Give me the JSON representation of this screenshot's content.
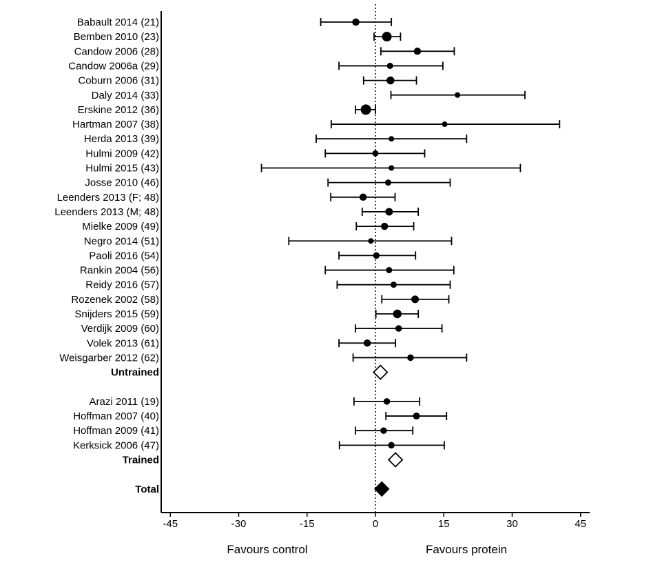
{
  "chart_data": {
    "type": "forest",
    "x_ticks": [
      -45,
      -30,
      -15,
      0,
      15,
      30,
      45
    ],
    "xlim": [
      -47,
      47
    ],
    "reference_line": 0,
    "x_caption_left": "Favours control",
    "x_caption_right": "Favours protein",
    "rows": [
      {
        "kind": "study",
        "label": "Babault 2014 (21)",
        "est": -4.3,
        "lo": -12.0,
        "hi": 3.5,
        "weight": 0.55
      },
      {
        "kind": "study",
        "label": "Bemben 2010 (23)",
        "est": 2.5,
        "lo": -0.3,
        "hi": 5.5,
        "weight": 0.9
      },
      {
        "kind": "study",
        "label": "Candow 2006 (28)",
        "est": 9.2,
        "lo": 1.2,
        "hi": 17.3,
        "weight": 0.55
      },
      {
        "kind": "study",
        "label": "Candow 2006a (29)",
        "est": 3.2,
        "lo": -8.0,
        "hi": 14.8,
        "weight": 0.4
      },
      {
        "kind": "study",
        "label": "Coburn 2006 (31)",
        "est": 3.3,
        "lo": -2.6,
        "hi": 9.0,
        "weight": 0.65
      },
      {
        "kind": "study",
        "label": "Daly 2014 (33)",
        "est": 18.0,
        "lo": 3.4,
        "hi": 32.8,
        "weight": 0.3
      },
      {
        "kind": "study",
        "label": "Erskine 2012 (36)",
        "est": -2.1,
        "lo": -4.4,
        "hi": 0.0,
        "weight": 1.0
      },
      {
        "kind": "study",
        "label": "Hartman 2007 (38)",
        "est": 15.2,
        "lo": -9.7,
        "hi": 40.4,
        "weight": 0.3
      },
      {
        "kind": "study",
        "label": "Herda 2013 (39)",
        "est": 3.5,
        "lo": -13.0,
        "hi": 20.0,
        "weight": 0.3
      },
      {
        "kind": "study",
        "label": "Hulmi 2009 (42)",
        "est": 0.0,
        "lo": -11.0,
        "hi": 10.8,
        "weight": 0.4
      },
      {
        "kind": "study",
        "label": "Hulmi 2015 (43)",
        "est": 3.5,
        "lo": -25.0,
        "hi": 31.8,
        "weight": 0.3
      },
      {
        "kind": "study",
        "label": "Josse 2010 (46)",
        "est": 2.8,
        "lo": -10.4,
        "hi": 16.4,
        "weight": 0.4
      },
      {
        "kind": "study",
        "label": "Leenders 2013 (F; 48)",
        "est": -2.7,
        "lo": -9.8,
        "hi": 4.3,
        "weight": 0.55
      },
      {
        "kind": "study",
        "label": "Leenders 2013 (M; 48)",
        "est": 3.0,
        "lo": -2.9,
        "hi": 9.4,
        "weight": 0.6
      },
      {
        "kind": "study",
        "label": "Mielke 2009 (49)",
        "est": 2.0,
        "lo": -4.2,
        "hi": 8.4,
        "weight": 0.55
      },
      {
        "kind": "study",
        "label": "Negro 2014 (51)",
        "est": -1.0,
        "lo": -19.0,
        "hi": 16.7,
        "weight": 0.3
      },
      {
        "kind": "study",
        "label": "Paoli 2016 (54)",
        "est": 0.2,
        "lo": -8.0,
        "hi": 8.8,
        "weight": 0.45
      },
      {
        "kind": "study",
        "label": "Rankin 2004 (56)",
        "est": 3.0,
        "lo": -11.0,
        "hi": 17.2,
        "weight": 0.4
      },
      {
        "kind": "study",
        "label": "Reidy 2016 (57)",
        "est": 4.0,
        "lo": -8.4,
        "hi": 16.4,
        "weight": 0.4
      },
      {
        "kind": "study",
        "label": "Rozenek 2002 (58)",
        "est": 8.7,
        "lo": 1.4,
        "hi": 16.1,
        "weight": 0.6
      },
      {
        "kind": "study",
        "label": "Snijders 2015 (59)",
        "est": 4.8,
        "lo": 0.1,
        "hi": 9.4,
        "weight": 0.75
      },
      {
        "kind": "study",
        "label": "Verdijk 2009 (60)",
        "est": 5.1,
        "lo": -4.4,
        "hi": 14.6,
        "weight": 0.45
      },
      {
        "kind": "study",
        "label": "Volek 2013 (61)",
        "est": -1.8,
        "lo": -8.0,
        "hi": 4.4,
        "weight": 0.55
      },
      {
        "kind": "study",
        "label": "Weisgarber 2012 (62)",
        "est": 7.7,
        "lo": -4.9,
        "hi": 20.0,
        "weight": 0.45
      },
      {
        "kind": "subtotal",
        "label": "Untrained",
        "est": 1.1,
        "lo": -0.9,
        "hi": 3.0,
        "filled": false
      },
      {
        "kind": "gap"
      },
      {
        "kind": "study",
        "label": "Arazi 2011 (19)",
        "est": 2.5,
        "lo": -4.7,
        "hi": 9.7,
        "weight": 0.45
      },
      {
        "kind": "study",
        "label": "Hoffman 2007 (40)",
        "est": 9.0,
        "lo": 2.3,
        "hi": 15.6,
        "weight": 0.5
      },
      {
        "kind": "study",
        "label": "Hoffman 2009 (41)",
        "est": 1.8,
        "lo": -4.4,
        "hi": 8.2,
        "weight": 0.45
      },
      {
        "kind": "study",
        "label": "Kerksick 2006 (47)",
        "est": 3.5,
        "lo": -7.9,
        "hi": 15.1,
        "weight": 0.45
      },
      {
        "kind": "subtotal",
        "label": "Trained",
        "est": 4.4,
        "lo": 2.8,
        "hi": 5.9,
        "filled": false
      },
      {
        "kind": "gap"
      },
      {
        "kind": "subtotal",
        "label": "Total",
        "est": 1.4,
        "lo": 0.1,
        "hi": 2.7,
        "filled": true
      }
    ]
  }
}
